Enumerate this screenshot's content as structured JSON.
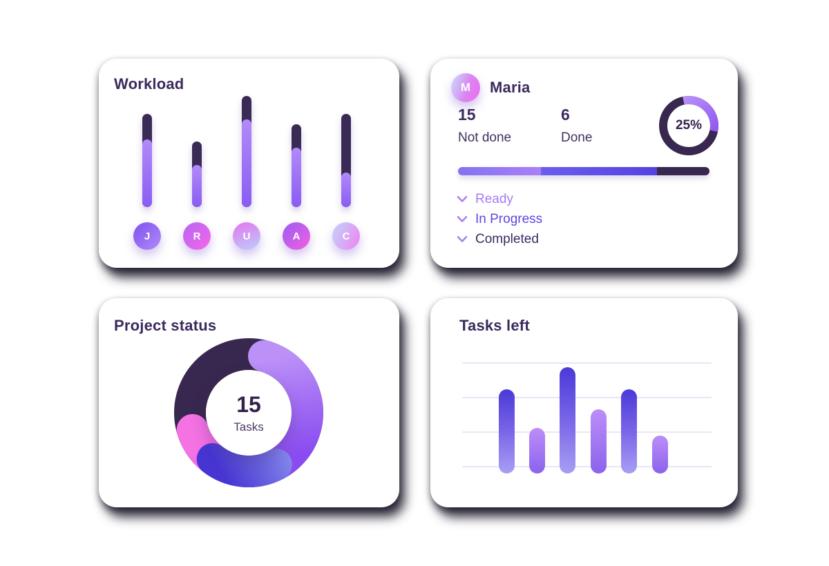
{
  "colors": {
    "ink": "#3b2a5e",
    "dark_purple": "#38274e",
    "light_purple": "#a57bf5",
    "indigo": "#5b46e2",
    "pink": "#ee5ef0",
    "gridline": "#eae5f7",
    "card_bg": "#ffffff"
  },
  "workload": {
    "title": "Workload",
    "members": [
      {
        "initial": "J",
        "avatar_gradient": [
          "#7e52ee",
          "#b18af8"
        ],
        "avatar_angle": 135
      },
      {
        "initial": "R",
        "avatar_gradient": [
          "#b766f2",
          "#f666e8"
        ],
        "avatar_angle": 135
      },
      {
        "initial": "U",
        "avatar_gradient": [
          "#e773ee",
          "#b9d0fa"
        ],
        "avatar_angle": 160
      },
      {
        "initial": "A",
        "avatar_gradient": [
          "#9a5cf2",
          "#f55fe2"
        ],
        "avatar_angle": 135
      },
      {
        "initial": "C",
        "avatar_gradient": [
          "#bfd6fa",
          "#ef82f0"
        ],
        "avatar_angle": 115
      }
    ]
  },
  "maria": {
    "name": "Maria",
    "avatar_initial": "M",
    "not_done": {
      "value": "15",
      "label": "Not done"
    },
    "done": {
      "value": "6",
      "label": "Done"
    },
    "ring": {
      "percent_label": "25%",
      "percent": 25
    },
    "legend": [
      {
        "label": "Ready",
        "color": "#a57bf5"
      },
      {
        "label": "In Progress",
        "color": "#5b46e2"
      },
      {
        "label": "Completed",
        "color": "#3b2a5e"
      }
    ],
    "chevron_color": "#ab84f2"
  },
  "project_status": {
    "title": "Project status",
    "total": {
      "value": "15",
      "label": "Tasks"
    }
  },
  "tasks_left": {
    "title": "Tasks left",
    "gridline_count": 4
  },
  "chart_data": [
    {
      "id": "workload",
      "type": "bar",
      "title": "Workload",
      "orientation": "vertical-capsule-stacked",
      "categories": [
        "J",
        "R",
        "U",
        "A",
        "C"
      ],
      "series": [
        {
          "name": "done-dark-top",
          "color": "#3a2a56",
          "values": [
            37,
            34,
            34,
            34,
            85
          ]
        },
        {
          "name": "remaining-purple-bottom",
          "color": "#9a6cf5",
          "values": [
            98,
            61,
            127,
            86,
            50
          ]
        }
      ],
      "units": "px",
      "grid": false
    },
    {
      "id": "maria-ring",
      "type": "donut",
      "center_label": "25%",
      "slices": [
        {
          "name": "completed",
          "percent": 25,
          "color": "#a57bf5",
          "start_deg": -12,
          "end_deg": 102
        },
        {
          "name": "remaining",
          "percent": 75,
          "color": "#38274e"
        }
      ]
    },
    {
      "id": "maria-progress",
      "type": "stacked-bar",
      "segments": [
        {
          "name": "ready",
          "percent": 33,
          "gradient": [
            "#8472f0",
            "#aa80f6"
          ]
        },
        {
          "name": "in_progress",
          "percent": 46,
          "gradient": [
            "#6b5eec",
            "#5442e0"
          ]
        },
        {
          "name": "completed",
          "percent": 21,
          "gradient": [
            "#38274e",
            "#38274e"
          ]
        }
      ]
    },
    {
      "id": "project-status",
      "type": "donut",
      "title": "Project status",
      "center": {
        "value": "15",
        "label": "Tasks"
      },
      "slices_deg_clockwise_from_top": [
        {
          "name": "dark",
          "start": 253,
          "end": 375,
          "color": "#38274e",
          "approx_percent": 34
        },
        {
          "name": "purple",
          "start": 15,
          "end": 160,
          "gradient": [
            "#bb91f8",
            "#8a4cf0"
          ],
          "approx_percent": 40
        },
        {
          "name": "pink",
          "start": 215,
          "end": 253,
          "gradient": [
            "#f472e2",
            "#ee4ff4"
          ],
          "approx_percent": 11
        },
        {
          "name": "indigo",
          "start": 152,
          "end": 218,
          "gradient": [
            "#4635d2",
            "#9aa3f3"
          ],
          "approx_percent": 15
        }
      ]
    },
    {
      "id": "tasks-left",
      "type": "bar",
      "title": "Tasks left",
      "values": [
        122,
        66,
        154,
        93,
        122,
        55
      ],
      "variants": [
        "tall",
        "short",
        "tall",
        "short",
        "tall",
        "short"
      ],
      "units": "px",
      "grid": true,
      "gridlines": 4
    }
  ]
}
